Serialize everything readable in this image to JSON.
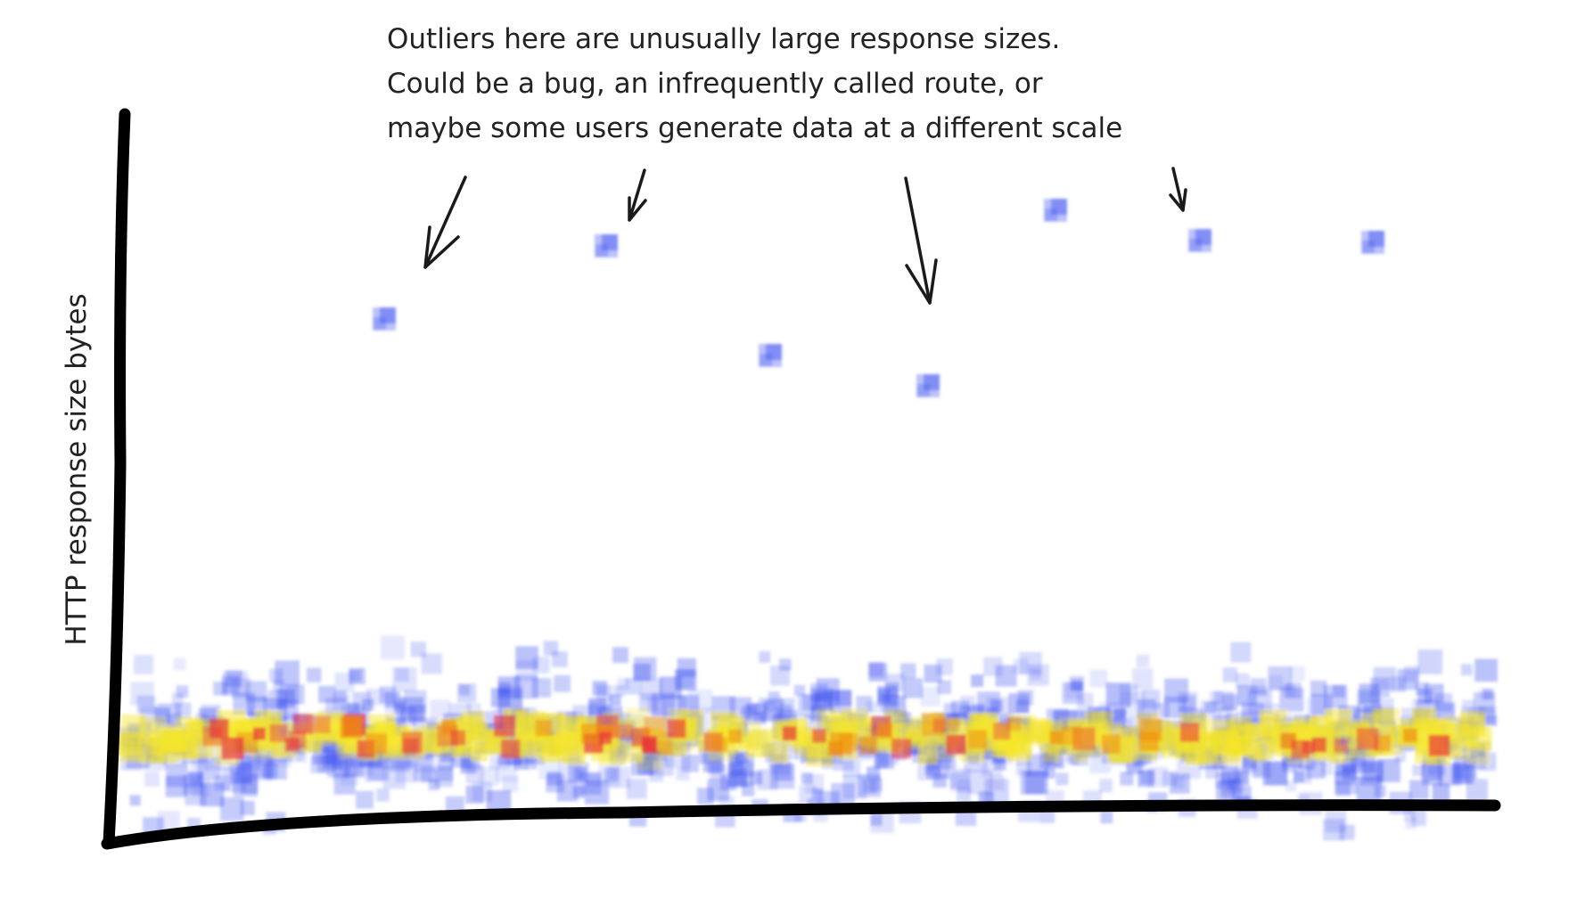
{
  "annotation": {
    "lines": [
      "Outliers here are unusually large response sizes.",
      "Could be a bug, an infrequently called route, or",
      "maybe some users generate data at a different scale"
    ]
  },
  "y_axis_label": "HTTP response size bytes"
}
